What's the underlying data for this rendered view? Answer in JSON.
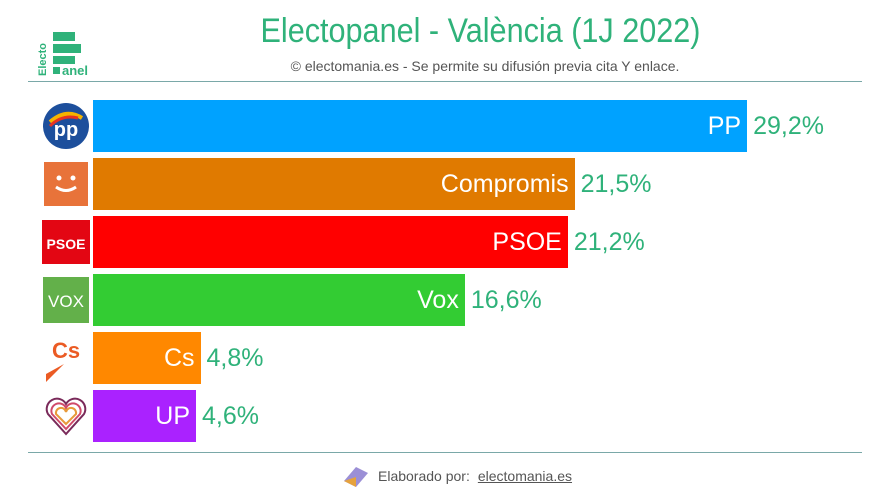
{
  "header": {
    "title": "Electopanel - València (1J 2022)",
    "subtitle": "© electomania.es - Se permite su difusión previa cita Y enlace.",
    "logo_text": "Electo panel"
  },
  "chart_data": {
    "type": "bar",
    "orientation": "horizontal",
    "title": "Electopanel - València (1J 2022)",
    "categories": [
      "PP",
      "Compromis",
      "PSOE",
      "Vox",
      "Cs",
      "UP"
    ],
    "values": [
      29.2,
      21.5,
      21.2,
      16.6,
      4.8,
      4.6
    ],
    "value_labels": [
      "29,2%",
      "21,5%",
      "21,2%",
      "16,6%",
      "4,8%",
      "4,6%"
    ],
    "colors": [
      "#00a2ff",
      "#e07a00",
      "#ff0000",
      "#33cc33",
      "#ff8800",
      "#aa22ff"
    ],
    "icons": [
      "pp-logo-icon",
      "compromis-logo-icon",
      "psoe-logo-icon",
      "vox-logo-icon",
      "cs-logo-icon",
      "up-logo-icon"
    ],
    "icon_texts": [
      "PP",
      "",
      "PSOE",
      "VOX",
      "Cs",
      ""
    ],
    "unit": "%"
  },
  "footer": {
    "label": "Elaborado por:",
    "link": "electomania.es"
  }
}
